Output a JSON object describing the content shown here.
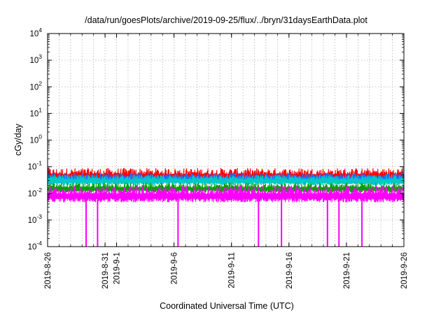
{
  "chart_data": {
    "type": "line",
    "title": "/data/run/goesPlots/archive/2019-09-25/flux/../bryn/31daysEarthData.plot",
    "xlabel": "Coordinated Universal Time (UTC)",
    "ylabel": "cGy/day",
    "yscale": "log",
    "ylim": [
      0.0001,
      10000
    ],
    "xlim": [
      "2019-08-26",
      "2019-09-26"
    ],
    "grid": true,
    "y_ticks": [
      {
        "base": "10",
        "exp": "-4",
        "value": 0.0001
      },
      {
        "base": "10",
        "exp": "-3",
        "value": 0.001
      },
      {
        "base": "10",
        "exp": "-2",
        "value": 0.01
      },
      {
        "base": "10",
        "exp": "-1",
        "value": 0.1
      },
      {
        "base": "10",
        "exp": "0",
        "value": 1
      },
      {
        "base": "10",
        "exp": "1",
        "value": 10
      },
      {
        "base": "10",
        "exp": "2",
        "value": 100
      },
      {
        "base": "10",
        "exp": "3",
        "value": 1000
      },
      {
        "base": "10",
        "exp": "4",
        "value": 10000
      }
    ],
    "x_ticks": [
      {
        "date": "2019-08-26",
        "label": "2019-8-26"
      },
      {
        "date": "2019-08-31",
        "label": "2019-8-31"
      },
      {
        "date": "2019-09-01",
        "label": "2019-9-1"
      },
      {
        "date": "2019-09-06",
        "label": "2019-9-6"
      },
      {
        "date": "2019-09-11",
        "label": "2019-9-11"
      },
      {
        "date": "2019-09-16",
        "label": "2019-9-16"
      },
      {
        "date": "2019-09-21",
        "label": "2019-9-21"
      },
      {
        "date": "2019-09-26",
        "label": "2019-9-26"
      }
    ],
    "series": [
      {
        "color": "#ff0000",
        "typical": 0.045,
        "min": 0.03,
        "max": 0.09
      },
      {
        "color": "#1e6fff",
        "typical": 0.035,
        "min": 0.02,
        "max": 0.06
      },
      {
        "color": "#00c8c8",
        "typical": 0.03,
        "min": 0.018,
        "max": 0.05
      },
      {
        "color": "#00a000",
        "typical": 0.015,
        "min": 0.01,
        "max": 0.025
      },
      {
        "color": "#ff00ff",
        "typical": 0.008,
        "min": 0.004,
        "max": 0.02
      }
    ],
    "magenta_dropouts": [
      "2019-08-29",
      "2019-08-30",
      "2019-09-06",
      "2019-09-13",
      "2019-09-15",
      "2019-09-19",
      "2019-09-20",
      "2019-09-22"
    ]
  }
}
